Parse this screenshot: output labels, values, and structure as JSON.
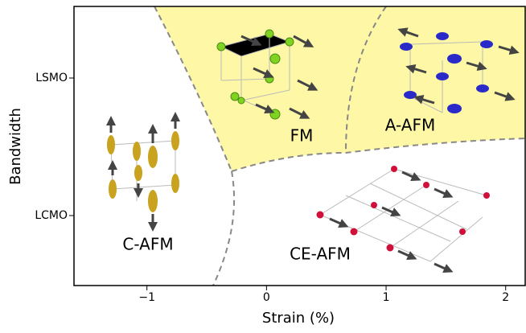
{
  "chart_data": {
    "type": "phase",
    "xlabel": "Strain (%)",
    "ylabel": "Bandwidth",
    "xlim": [
      -1.61,
      2.17
    ],
    "xticks": [
      {
        "value": -1,
        "label": "−1"
      },
      0,
      1,
      2
    ],
    "ycategories": [
      "LCMO",
      "LSMO"
    ],
    "regions": [
      "FM",
      "A-AFM",
      "C-AFM",
      "CE-AFM"
    ],
    "region_color": "#fdf7a6"
  }
}
